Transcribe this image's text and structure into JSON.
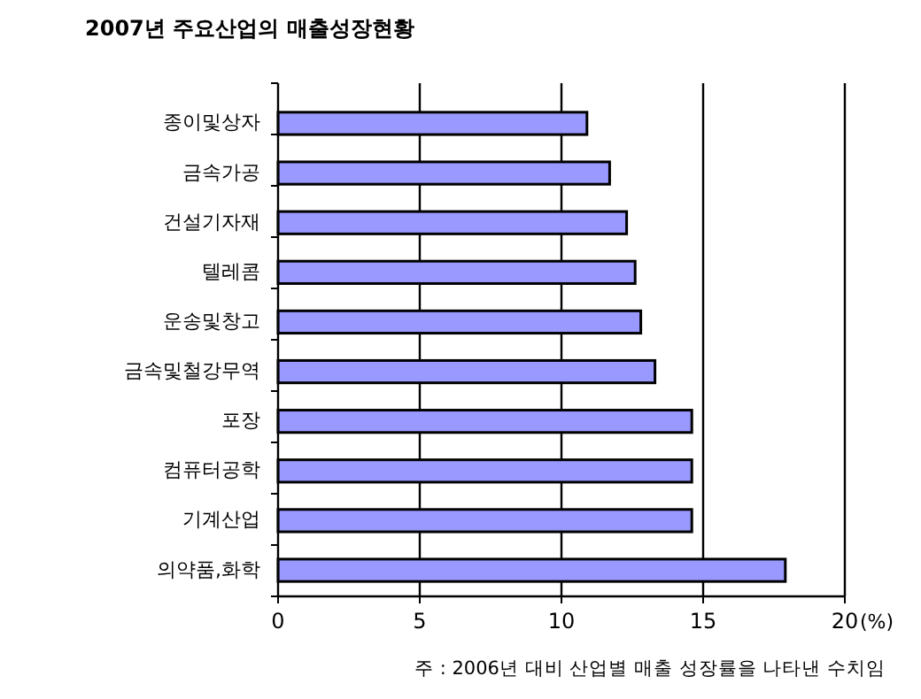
{
  "chart_data": {
    "type": "bar",
    "orientation": "horizontal",
    "title": "2007년 주요산업의 매출성장현황",
    "categories": [
      "종이및상자",
      "금속가공",
      "건설기자재",
      "텔레콤",
      "운송및창고",
      "금속및철강무역",
      "포장",
      "컴퓨터공학",
      "기계산업",
      "의약품,화학"
    ],
    "values": [
      10.9,
      11.7,
      12.3,
      12.6,
      12.8,
      13.3,
      14.6,
      14.6,
      14.6,
      17.9
    ],
    "color": "#9999ff",
    "xlim": [
      0,
      20
    ],
    "xticks": [
      0,
      5,
      10,
      15,
      20
    ],
    "xlabel": "(%)",
    "grid": "x",
    "annotations": [
      "주 : 2006년 대비 산업별  매출 성장률을 나타낸 수치임"
    ]
  }
}
